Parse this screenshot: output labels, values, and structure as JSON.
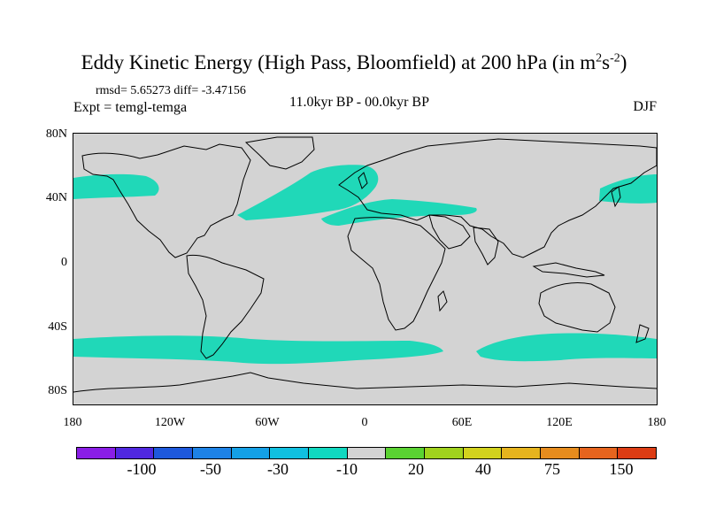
{
  "title": {
    "main": "Eddy Kinetic Energy (High Pass, Bloomfield) at 200 hPa (in m",
    "sup1": "2",
    "mid": "s",
    "sup2": "-2",
    "close": ")"
  },
  "stats": "rmsd= 5.65273 diff= -3.47156",
  "experiment": "Expt = temgl-temga",
  "period": "11.0kyr BP - 00.0kyr BP",
  "season": "DJF",
  "map": {
    "background_color": "#d3d3d3",
    "anomaly_color": "#20d8b8",
    "coast_color": "#000000",
    "lat_labels": [
      "80N",
      "40N",
      "0",
      "40S",
      "80S"
    ],
    "lon_labels": [
      "180",
      "120W",
      "60W",
      "0",
      "60E",
      "120E",
      "180"
    ]
  },
  "colorbar": {
    "colors": [
      "#8a1ee6",
      "#5028e0",
      "#1e58dc",
      "#1e82e6",
      "#14a0e6",
      "#10c0e0",
      "#10d8c0",
      "#d3d3d3",
      "#5ad232",
      "#a0d21e",
      "#d2d21e",
      "#e6b41e",
      "#e68c1e",
      "#e6641e",
      "#dc3c14"
    ],
    "labels": [
      "-100",
      "-50",
      "-30",
      "-10",
      "20",
      "40",
      "75",
      "150"
    ]
  }
}
